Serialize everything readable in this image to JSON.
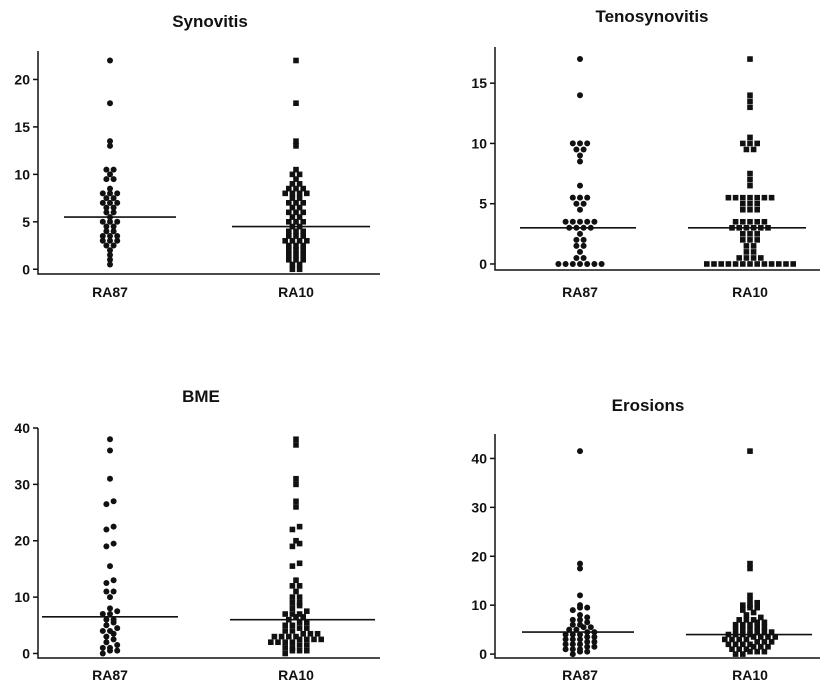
{
  "chart_data": [
    {
      "type": "scatter",
      "title": "Synovitis",
      "categories": [
        "RA87",
        "RA10"
      ],
      "yticks": [
        0,
        5,
        10,
        15,
        20
      ],
      "ylim": [
        -0.5,
        23
      ],
      "grid": false,
      "series": [
        {
          "name": "RA87",
          "marker": "circle",
          "median": 5.5,
          "values": [
            22,
            17.5,
            13.5,
            13,
            10.5,
            10.5,
            10,
            9.5,
            9.5,
            8.5,
            8,
            8,
            8,
            7.5,
            7.5,
            7,
            7,
            7,
            6.5,
            6.5,
            6,
            6,
            5.5,
            5,
            5,
            5,
            4.5,
            4.5,
            4,
            4,
            3.5,
            3.5,
            3.5,
            3,
            3,
            3,
            2.5,
            2.5,
            2,
            1.5,
            1,
            0.5
          ]
        },
        {
          "name": "RA10",
          "marker": "square",
          "median": 4.5,
          "values": [
            22,
            17.5,
            13.5,
            13,
            10.5,
            10,
            10,
            9.5,
            9,
            9,
            8.5,
            8.5,
            8.5,
            8,
            8,
            8,
            8,
            7.5,
            7.5,
            7,
            7,
            7,
            6.5,
            6.5,
            6,
            6,
            6,
            5.5,
            5.5,
            5,
            5,
            5,
            4.5,
            4.5,
            4,
            4,
            4,
            3.5,
            3.5,
            3.5,
            3,
            3,
            3,
            3,
            2.5,
            2.5,
            2.5,
            2,
            2,
            2,
            1.5,
            1.5,
            1.5,
            1,
            1,
            1,
            0.5,
            0.5,
            0,
            0
          ]
        }
      ]
    },
    {
      "type": "scatter",
      "title": "Tenosynovitis",
      "categories": [
        "RA87",
        "RA10"
      ],
      "yticks": [
        0,
        5,
        10,
        15
      ],
      "ylim": [
        -0.5,
        18
      ],
      "grid": false,
      "series": [
        {
          "name": "RA87",
          "marker": "circle",
          "median": 3,
          "values": [
            17,
            14,
            10,
            10,
            10,
            9.5,
            9.5,
            9,
            8.5,
            6.5,
            5.5,
            5.5,
            5.5,
            5,
            5,
            4.5,
            3.5,
            3.5,
            3.5,
            3.5,
            3.5,
            3,
            3,
            3,
            3,
            2.5,
            2,
            2,
            1.5,
            1.5,
            1,
            0.5,
            0.5,
            0,
            0,
            0,
            0,
            0,
            0,
            0
          ]
        },
        {
          "name": "RA10",
          "marker": "square",
          "median": 3,
          "values": [
            17,
            14,
            13.5,
            13,
            10.5,
            10,
            10,
            10,
            9.5,
            9.5,
            7.5,
            7,
            6.5,
            5.5,
            5.5,
            5.5,
            5.5,
            5.5,
            5.5,
            5.5,
            5,
            5,
            5,
            4.5,
            4.5,
            4.5,
            3.5,
            3.5,
            3.5,
            3.5,
            3.5,
            3,
            3,
            3,
            3,
            3,
            3,
            2.5,
            2.5,
            2.5,
            2,
            2,
            2,
            1.5,
            1.5,
            1,
            1,
            0.5,
            0.5,
            0.5,
            0.5,
            0,
            0,
            0,
            0,
            0,
            0,
            0,
            0,
            0,
            0,
            0,
            0,
            0
          ]
        }
      ]
    },
    {
      "type": "scatter",
      "title": "BME",
      "categories": [
        "RA87",
        "RA10"
      ],
      "yticks": [
        0,
        10,
        20,
        30,
        40
      ],
      "ylim": [
        -0.8,
        40
      ],
      "grid": false,
      "series": [
        {
          "name": "RA87",
          "marker": "circle",
          "median": 6.5,
          "values": [
            38,
            36,
            31,
            27,
            26.5,
            22.5,
            22,
            19.5,
            19,
            15.5,
            13,
            12.5,
            11,
            11,
            10,
            8,
            7.5,
            7,
            7,
            6,
            6,
            5.5,
            5,
            4.5,
            4,
            4,
            3.5,
            3,
            2.5,
            2,
            1.5,
            1,
            1,
            0.5,
            0.5,
            0
          ]
        },
        {
          "name": "RA10",
          "marker": "square",
          "median": 6,
          "values": [
            38,
            37,
            31,
            30,
            27,
            26,
            22.5,
            22,
            20,
            19.5,
            19,
            16,
            15.5,
            13,
            12,
            12,
            11,
            10,
            10,
            9,
            9,
            8.5,
            8,
            7.5,
            7,
            7,
            7,
            6.5,
            6.5,
            6,
            5.5,
            5.5,
            5,
            5,
            4.5,
            4.5,
            4,
            4,
            3.5,
            3.5,
            3.5,
            3,
            3,
            3,
            3,
            2.5,
            2.5,
            2.5,
            2.5,
            2,
            2,
            2,
            2,
            1.5,
            1.5,
            1,
            1,
            0.5,
            0.5,
            0.5,
            0
          ]
        }
      ]
    },
    {
      "type": "scatter",
      "title": "Erosions",
      "categories": [
        "RA87",
        "RA10"
      ],
      "yticks": [
        0,
        10,
        20,
        30,
        40
      ],
      "ylim": [
        -0.8,
        45
      ],
      "grid": false,
      "series": [
        {
          "name": "RA87",
          "marker": "circle",
          "median": 4.5,
          "values": [
            41.5,
            18.5,
            17.5,
            12,
            10,
            9.5,
            9.5,
            9,
            8,
            7.5,
            7,
            7,
            6.5,
            6,
            6,
            5.5,
            5.5,
            5,
            5,
            4.5,
            4.5,
            4,
            4,
            4,
            3.5,
            3.5,
            3,
            3,
            3,
            2.5,
            2.5,
            2,
            2,
            2,
            1.5,
            1.5,
            1,
            1,
            1,
            0.5,
            0.5,
            0
          ]
        },
        {
          "name": "RA10",
          "marker": "square",
          "median": 4,
          "values": [
            41.5,
            18.5,
            17.5,
            12,
            11,
            10.5,
            10,
            10,
            9.5,
            9.5,
            9,
            8.5,
            8,
            7.5,
            7,
            7,
            7,
            6.5,
            6.5,
            6,
            6,
            6,
            5.5,
            5.5,
            5,
            5,
            5,
            4.5,
            4.5,
            4.5,
            4,
            4,
            4,
            4,
            3.5,
            3.5,
            3.5,
            3.5,
            3,
            3,
            3,
            3,
            2.5,
            2.5,
            2.5,
            2,
            2,
            2,
            2,
            1.5,
            1.5,
            1.5,
            1,
            1,
            1,
            0.5,
            0.5,
            0.5,
            0,
            0
          ]
        }
      ]
    }
  ]
}
